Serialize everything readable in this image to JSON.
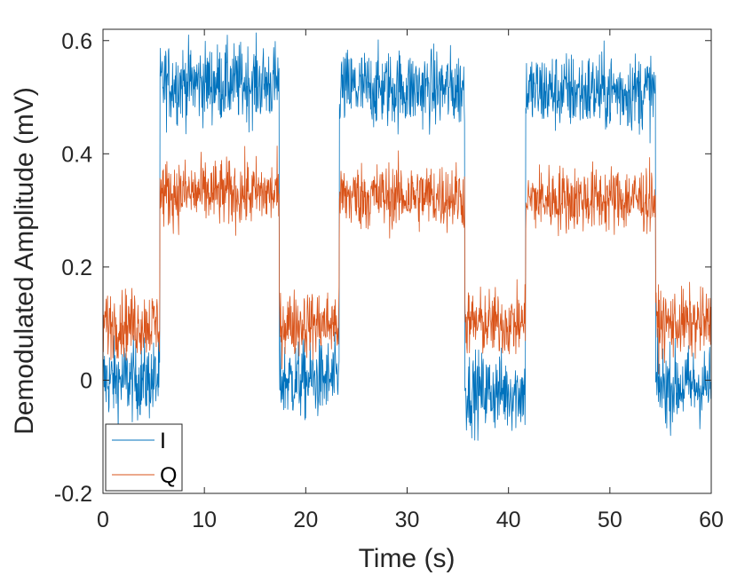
{
  "chart_data": {
    "type": "line",
    "title": "",
    "xlabel": "Time (s)",
    "ylabel": "Demodulated Amplitude (mV)",
    "xlim": [
      0,
      60
    ],
    "ylim": [
      -0.2,
      0.62
    ],
    "xticks": [
      0,
      10,
      20,
      30,
      40,
      50,
      60
    ],
    "xtick_labels": [
      "0",
      "10",
      "20",
      "30",
      "40",
      "50",
      "60"
    ],
    "yticks": [
      -0.2,
      0,
      0.2,
      0.4,
      0.6
    ],
    "ytick_labels": [
      "-0.2",
      "0",
      "0.2",
      "0.4",
      "0.6"
    ],
    "grid": false,
    "legend": {
      "position": "bottom-left"
    },
    "series": [
      {
        "name": "I",
        "color": "#0072BD",
        "noise": 0.035,
        "segments": [
          {
            "start": 0,
            "end": 5.6,
            "level": 0.0
          },
          {
            "start": 5.6,
            "end": 17.4,
            "level": 0.525
          },
          {
            "start": 17.4,
            "end": 23.3,
            "level": 0.0
          },
          {
            "start": 23.3,
            "end": 35.7,
            "level": 0.515
          },
          {
            "start": 35.7,
            "end": 41.7,
            "level": -0.02
          },
          {
            "start": 41.7,
            "end": 54.5,
            "level": 0.51
          },
          {
            "start": 54.5,
            "end": 60,
            "level": -0.01
          }
        ]
      },
      {
        "name": "Q",
        "color": "#D95319",
        "noise": 0.03,
        "segments": [
          {
            "start": 0,
            "end": 5.6,
            "level": 0.1
          },
          {
            "start": 5.6,
            "end": 17.4,
            "level": 0.33
          },
          {
            "start": 17.4,
            "end": 23.3,
            "level": 0.1
          },
          {
            "start": 23.3,
            "end": 35.7,
            "level": 0.325
          },
          {
            "start": 35.7,
            "end": 41.7,
            "level": 0.1
          },
          {
            "start": 41.7,
            "end": 54.5,
            "level": 0.32
          },
          {
            "start": 54.5,
            "end": 60,
            "level": 0.1
          }
        ]
      }
    ]
  }
}
